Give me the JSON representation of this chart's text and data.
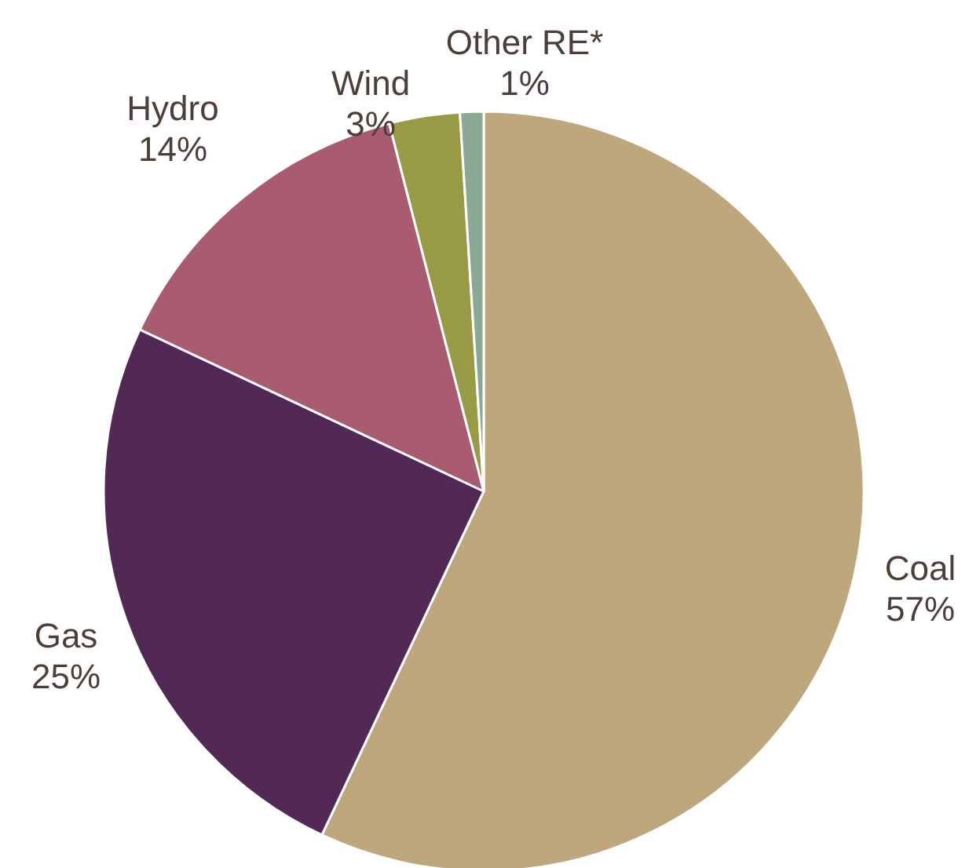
{
  "chart_data": {
    "type": "pie",
    "categories": [
      "Coal",
      "Gas",
      "Hydro",
      "Wind",
      "Other RE*"
    ],
    "values": [
      57,
      25,
      14,
      3,
      1
    ],
    "value_labels": [
      "57%",
      "25%",
      "14%",
      "3%",
      "1%"
    ],
    "colors": [
      "#bfa77d",
      "#522855",
      "#a95c70",
      "#999a45",
      "#8aa894"
    ],
    "legend": false
  }
}
